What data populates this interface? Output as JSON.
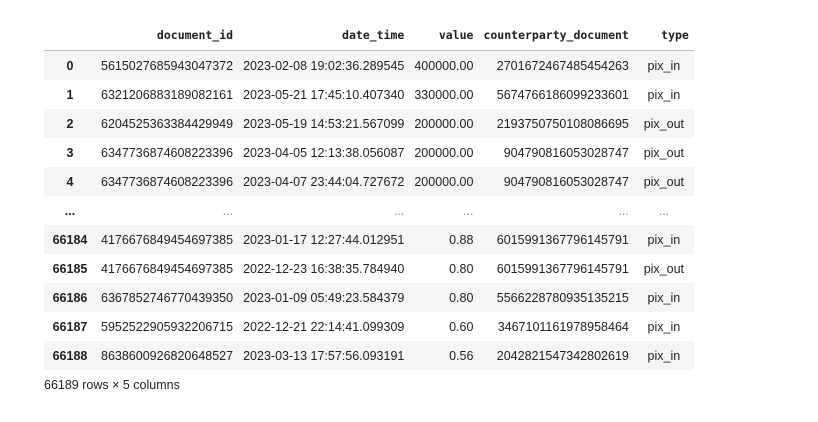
{
  "table": {
    "columns": [
      "",
      "document_id",
      "date_time",
      "value",
      "counterparty_document",
      "type"
    ],
    "rows": [
      {
        "index": "0",
        "document_id": "5615027685943047372",
        "date_time": "2023-02-08 19:02:36.289545",
        "value": "400000.00",
        "counterparty_document": "2701672467485454263",
        "type": "pix_in"
      },
      {
        "index": "1",
        "document_id": "6321206883189082161",
        "date_time": "2023-05-21 17:45:10.407340",
        "value": "330000.00",
        "counterparty_document": "5674766186099233601",
        "type": "pix_in"
      },
      {
        "index": "2",
        "document_id": "6204525363384429949",
        "date_time": "2023-05-19 14:53:21.567099",
        "value": "200000.00",
        "counterparty_document": "2193750750108086695",
        "type": "pix_out"
      },
      {
        "index": "3",
        "document_id": "6347736874608223396",
        "date_time": "2023-04-05 12:13:38.056087",
        "value": "200000.00",
        "counterparty_document": "904790816053028747",
        "type": "pix_out"
      },
      {
        "index": "4",
        "document_id": "6347736874608223396",
        "date_time": "2023-04-07 23:44:04.727672",
        "value": "200000.00",
        "counterparty_document": "904790816053028747",
        "type": "pix_out"
      },
      {
        "index": "...",
        "document_id": "...",
        "date_time": "...",
        "value": "...",
        "counterparty_document": "...",
        "type": "..."
      },
      {
        "index": "66184",
        "document_id": "4176676849454697385",
        "date_time": "2023-01-17 12:27:44.012951",
        "value": "0.88",
        "counterparty_document": "6015991367796145791",
        "type": "pix_in"
      },
      {
        "index": "66185",
        "document_id": "4176676849454697385",
        "date_time": "2022-12-23 16:38:35.784940",
        "value": "0.80",
        "counterparty_document": "6015991367796145791",
        "type": "pix_out"
      },
      {
        "index": "66186",
        "document_id": "6367852746770439350",
        "date_time": "2023-01-09 05:49:23.584379",
        "value": "0.80",
        "counterparty_document": "5566228780935135215",
        "type": "pix_in"
      },
      {
        "index": "66187",
        "document_id": "5952522905932206715",
        "date_time": "2022-12-21 22:14:41.099309",
        "value": "0.60",
        "counterparty_document": "3467101161978958464",
        "type": "pix_in"
      },
      {
        "index": "66188",
        "document_id": "8638600926820648527",
        "date_time": "2023-03-13 17:57:56.093191",
        "value": "0.56",
        "counterparty_document": "2042821547342802619",
        "type": "pix_in"
      }
    ]
  },
  "summary": "66189 rows × 5 columns"
}
